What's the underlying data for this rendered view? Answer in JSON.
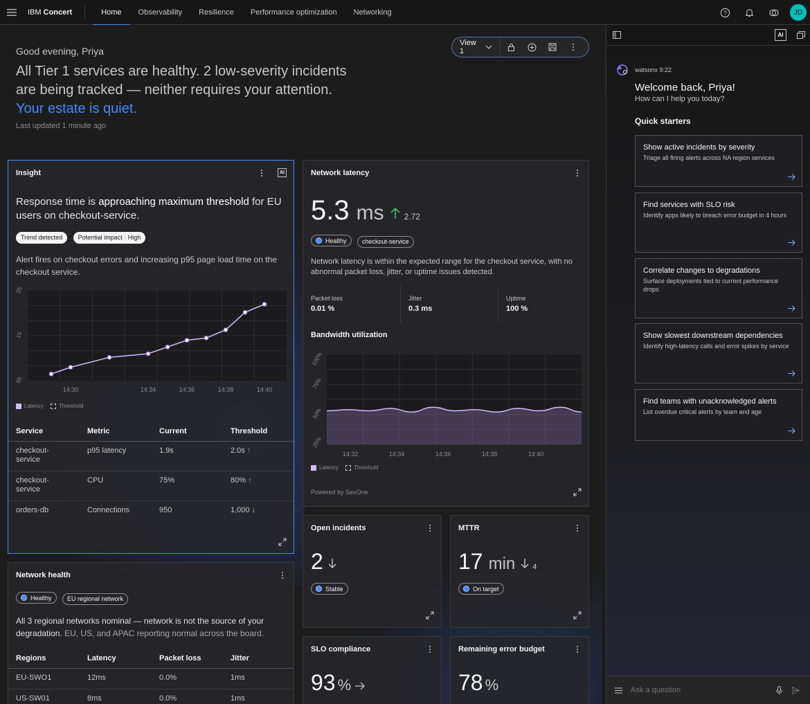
{
  "topbar": {
    "brand_prefix": "IBM",
    "brand_name": "Concert",
    "tabs": [
      "Home",
      "Observability",
      "Resilience",
      "Performance optimization",
      "Networking"
    ],
    "active_tab": "Home",
    "avatar_initials": "JD"
  },
  "home": {
    "greeting": "Good evening, Priya",
    "headline": "All Tier 1 services are healthy. 2 low-severity incidents are being tracked — neither requires your attention.",
    "headline_link": "Your estate is quiet.",
    "updated": "Last updated 1 minute ago"
  },
  "viewbar": {
    "label": "View 1"
  },
  "insight": {
    "title": "Insight",
    "ai_badge": "AI",
    "summary_pre": "Response time is ",
    "summary_bold": "approaching maximum threshold",
    "summary_post": " for EU users on checkout-service.",
    "tags": [
      "Trend detected",
      "Potential impact · High"
    ],
    "description": "Alert fires on checkout errors and increasing p95 page load time on the checkout service.",
    "legend": [
      "Latency",
      "Threshold"
    ],
    "table": {
      "headers": [
        "Service",
        "Metric",
        "Current",
        "Threshold"
      ],
      "rows": [
        {
          "service": "checkout-service",
          "metric": "p95 latency",
          "current": "1.9s",
          "threshold": "2.0s",
          "trend": "↑"
        },
        {
          "service": "checkout-service",
          "metric": "CPU",
          "current": "75%",
          "threshold": "80%",
          "trend": "↑"
        },
        {
          "service": "orders-db",
          "metric": "Connections",
          "current": "950",
          "threshold": "1,000",
          "trend": "↓"
        }
      ]
    }
  },
  "network_latency": {
    "title": "Network latency",
    "value": "5.3",
    "unit": "ms",
    "delta": "2.72",
    "tags": [
      "Healthy",
      "checkout-service"
    ],
    "description": "Network latency is within the expected range for the checkout service, with no abnormal packet loss, jitter, or uptime issues detected.",
    "stats": [
      {
        "label": "Packet loss",
        "value": "0.01 %"
      },
      {
        "label": "Jitter",
        "value": "0.3 ms"
      },
      {
        "label": "Uptime",
        "value": "100 %"
      }
    ],
    "bandwidth_title": "Bandwidth utilization",
    "legend": [
      "Latency",
      "Threshold"
    ],
    "footer": "Powered by SevOne"
  },
  "network_health": {
    "title": "Network health",
    "tags": [
      "Healthy",
      "EU regional network"
    ],
    "description_main": "All 3 regional networks nominal — network is not the source of your degradation.",
    "description_sub": "EU, US, and APAC reporting normal across the board.",
    "table": {
      "headers": [
        "Regions",
        "Latency",
        "Packet loss",
        "Jitter"
      ],
      "rows": [
        {
          "region": "EU-SWO1",
          "latency": "12ms",
          "packet_loss": "0.0%",
          "jitter": "1ms"
        },
        {
          "region": "US-SW01",
          "latency": "8ms",
          "packet_loss": "0.0%",
          "jitter": "1ms"
        }
      ]
    }
  },
  "open_incidents": {
    "title": "Open incidents",
    "value": "2",
    "tag": "Stable"
  },
  "mttr": {
    "title": "MTTR",
    "value": "17",
    "unit": "min",
    "delta": "4",
    "tag": "On target"
  },
  "slo": {
    "title": "SLO compliance",
    "value": "93",
    "unit": "%"
  },
  "error_budget": {
    "title": "Remaining error budget",
    "value": "78",
    "unit": "%"
  },
  "chat": {
    "ai_badge": "AI",
    "sender": "watsonx",
    "time": "9:22",
    "welcome": "Welcome back, Priya!",
    "prompt": "How can I help you today?",
    "quick_starters_title": "Quick starters",
    "quick_starters": [
      {
        "title": "Show active incidents by severity",
        "desc": "Triage all firing alerts across NA region services"
      },
      {
        "title": "Find services with SLO risk",
        "desc": "Identify apps likely to breach error budget in 4 hours"
      },
      {
        "title": "Correlate changes to degradations",
        "desc": "Surface deployments tied to current performance drops"
      },
      {
        "title": "Show slowest downstream dependencies",
        "desc": "Identify high-latency calls and error spikes by service"
      },
      {
        "title": "Find teams with unacknowledged alerts",
        "desc": "List overdue critical alerts by team and age"
      }
    ],
    "input_placeholder": "Ask a question"
  },
  "chart_data": [
    {
      "type": "line",
      "x": [
        "14:29",
        "14:30",
        "14:32",
        "14:34",
        "14:35",
        "14:36",
        "14:37",
        "14:38",
        "14:39",
        "14:40"
      ],
      "x_ticks": [
        "14:30",
        "14:34",
        "14:36",
        "14:38",
        "14:40"
      ],
      "y_ticks": [
        "05",
        "15",
        "25"
      ],
      "ylim": [
        5,
        25
      ],
      "series": [
        {
          "name": "Latency",
          "values": [
            6.5,
            8.0,
            10.2,
            11.0,
            12.5,
            14.0,
            14.5,
            16.3,
            20.2,
            22.0
          ]
        }
      ],
      "legend": [
        "Latency",
        "Threshold"
      ]
    },
    {
      "type": "area",
      "title": "Bandwidth utilization",
      "x_ticks": [
        "14:32",
        "14:34",
        "14:36",
        "14:38",
        "14:40"
      ],
      "y_ticks": [
        "100%",
        "75%",
        "50%",
        "25%"
      ],
      "ylim": [
        25,
        100
      ],
      "series": [
        {
          "name": "Latency",
          "values": [
            53,
            54,
            53,
            55,
            52,
            56,
            53,
            54,
            52,
            55,
            53,
            56,
            52
          ]
        }
      ],
      "legend": [
        "Latency",
        "Threshold"
      ]
    }
  ]
}
